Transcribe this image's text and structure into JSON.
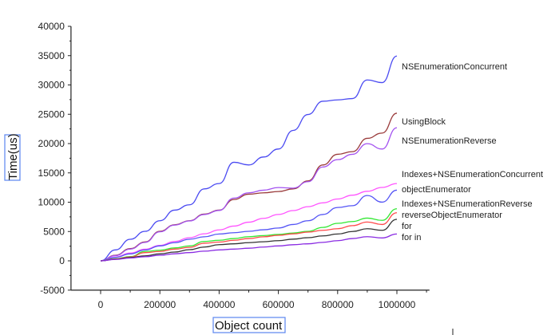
{
  "chart_data": {
    "type": "line",
    "title": "",
    "xlabel": "Object count",
    "ylabel": "Time(us)",
    "xlim": [
      -100000,
      1110000
    ],
    "ylim": [
      -5000,
      40000
    ],
    "xticks": [
      0,
      200000,
      400000,
      600000,
      800000,
      1000000
    ],
    "yticks": [
      -5000,
      0,
      5000,
      10000,
      15000,
      20000,
      25000,
      30000,
      35000,
      40000
    ],
    "grid": false,
    "legend": "inline labels at line ends (right)",
    "x": [
      0,
      50000,
      100000,
      150000,
      200000,
      250000,
      300000,
      350000,
      400000,
      450000,
      500000,
      550000,
      600000,
      650000,
      700000,
      750000,
      800000,
      850000,
      900000,
      950000,
      1000000
    ],
    "series": [
      {
        "name": "NSEnumerationConcurrent",
        "color": "#4b4bf2",
        "values": [
          0,
          1860,
          3670,
          5030,
          6840,
          8650,
          9560,
          12270,
          13180,
          16810,
          16350,
          17710,
          19070,
          22250,
          24960,
          27220,
          27450,
          27680,
          30850,
          30400,
          34930
        ]
      },
      {
        "name": "UsingBlock",
        "color": "#9a3b3b",
        "values": [
          0,
          950,
          2080,
          3220,
          5030,
          6160,
          6840,
          7970,
          8650,
          10460,
          11370,
          11600,
          11820,
          12270,
          13630,
          16350,
          18170,
          18620,
          20890,
          21790,
          25180
        ]
      },
      {
        "name": "NSEnumerationReverse",
        "color": "#a352f0",
        "values": [
          0,
          900,
          2000,
          3150,
          4950,
          6100,
          6800,
          7900,
          8600,
          10700,
          11600,
          12050,
          12500,
          12400,
          13500,
          16000,
          17260,
          18170,
          19980,
          19070,
          22700
        ]
      },
      {
        "name": "Indexes+NSEnumerationConcurrent",
        "color": "#ff55ff",
        "values": [
          0,
          660,
          1320,
          1980,
          2640,
          3300,
          3950,
          4610,
          5270,
          5930,
          6590,
          7250,
          7910,
          8570,
          9230,
          9890,
          10540,
          11200,
          11860,
          12520,
          13180
        ]
      },
      {
        "name": "objectEnumerator",
        "color": "#5555f5",
        "values": [
          0,
          600,
          1180,
          1850,
          2540,
          3100,
          3670,
          4100,
          4570,
          4800,
          5030,
          5300,
          5600,
          6200,
          6840,
          7900,
          9100,
          9400,
          11140,
          10010,
          12050
        ]
      },
      {
        "name": "Indexes+NSEnumerationReverse",
        "color": "#33e833",
        "values": [
          0,
          370,
          720,
          1600,
          1800,
          2200,
          2540,
          3300,
          3500,
          3800,
          4120,
          4300,
          4500,
          4750,
          5030,
          5700,
          6390,
          6700,
          7290,
          6900,
          8880
        ]
      },
      {
        "name": "reverseObjectEnumerator",
        "color": "#ff4a4a",
        "values": [
          0,
          320,
          650,
          1400,
          1600,
          2000,
          2300,
          3000,
          3200,
          3500,
          3800,
          4100,
          4350,
          4600,
          4900,
          5200,
          5480,
          6000,
          6620,
          6200,
          8200
        ]
      },
      {
        "name": "for",
        "color": "#333333",
        "values": [
          0,
          280,
          560,
          850,
          1180,
          1500,
          1900,
          2350,
          2760,
          2900,
          3100,
          3250,
          3440,
          3700,
          3950,
          4250,
          4570,
          5000,
          5480,
          5200,
          7070
        ]
      },
      {
        "name": "for in",
        "color": "#8a2be2",
        "values": [
          0,
          240,
          480,
          700,
          950,
          1200,
          1400,
          1650,
          1860,
          2000,
          2150,
          2350,
          2540,
          2750,
          2900,
          3150,
          3440,
          3800,
          4120,
          3900,
          4570
        ]
      }
    ]
  }
}
